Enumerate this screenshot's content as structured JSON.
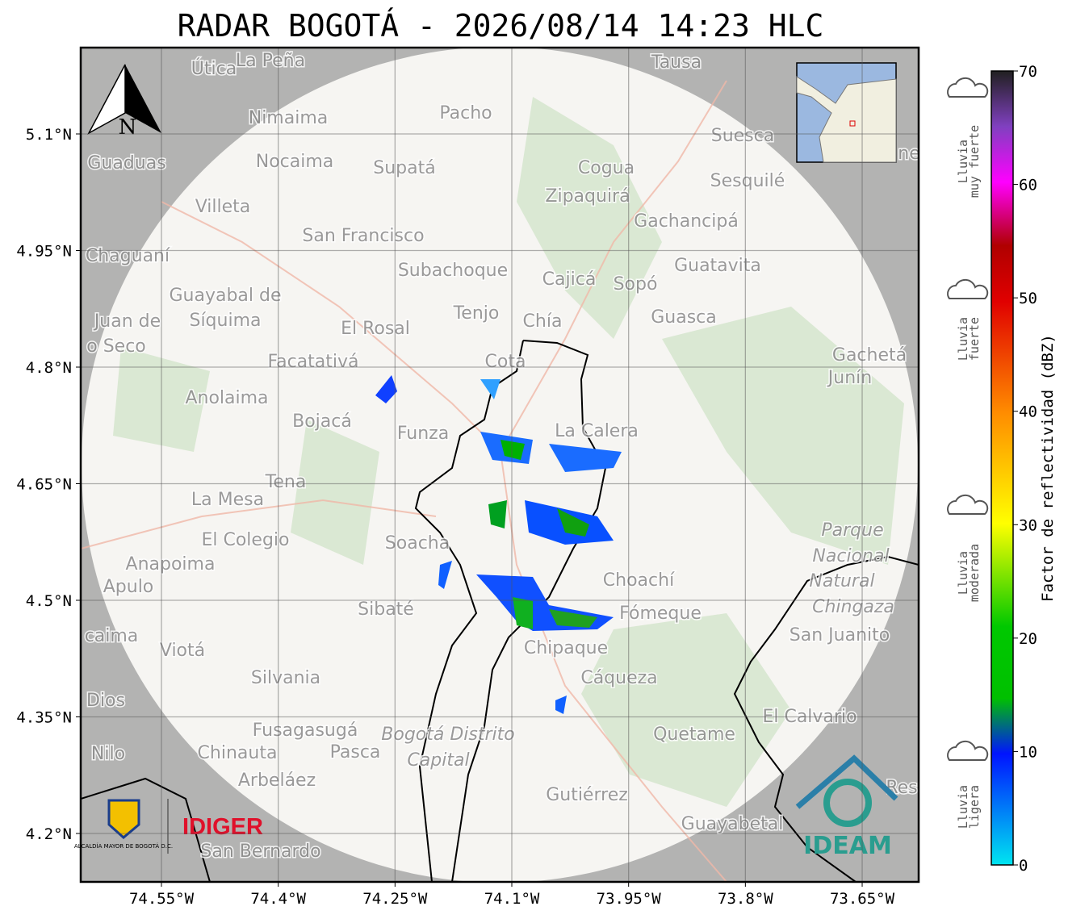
{
  "header": {
    "title": "RADAR BOGOTÁ - 2026/08/14 14:23 HLC"
  },
  "map": {
    "xticks": [
      {
        "value": -74.55,
        "label": "74.55°W"
      },
      {
        "value": -74.4,
        "label": "74.4°W"
      },
      {
        "value": -74.25,
        "label": "74.25°W"
      },
      {
        "value": -74.1,
        "label": "74.1°W"
      },
      {
        "value": -73.95,
        "label": "73.95°W"
      },
      {
        "value": -73.8,
        "label": "73.8°W"
      },
      {
        "value": -73.65,
        "label": "73.65°W"
      }
    ],
    "yticks": [
      {
        "value": 5.1,
        "label": "5.1°N"
      },
      {
        "value": 4.95,
        "label": "4.95°N"
      },
      {
        "value": 4.8,
        "label": "4.8°N"
      },
      {
        "value": 4.65,
        "label": "4.65°N"
      },
      {
        "value": 4.5,
        "label": "4.5°N"
      },
      {
        "value": 4.35,
        "label": "4.35°N"
      },
      {
        "value": 4.2,
        "label": "4.2°N"
      }
    ],
    "north": "N",
    "places": [
      "Útica",
      "La Peña",
      "Tausa",
      "Pacho",
      "Nimaima",
      "Guaduas",
      "Nocaima",
      "Supatá",
      "Cogua",
      "Suesca",
      "Sesquilé",
      "Zipaquirá",
      "Villeta",
      "Gachancipá",
      "San Francisco",
      "Chaguaní",
      "Guatavita",
      "Subachoque",
      "Cajicá",
      "Sopó",
      "Guayabal de",
      "Síquima",
      "Juan de",
      "Tenjo",
      "Chía",
      "Guasca",
      "El Rosal",
      "o Seco",
      "Gachetá",
      "Facatativá",
      "Cota",
      "Junín",
      "Anolaima",
      "Bojacá",
      "Funza",
      "La Calera",
      "Tena",
      "La Mesa",
      "El Colegio",
      "Parque",
      "Soacha",
      "Nacional",
      "Anapoima",
      "Apulo",
      "Natural",
      "Choachí",
      "Chingaza",
      "Sibaté",
      "Fómeque",
      "caima",
      "San Juanito",
      "Viotá",
      "Chipaque",
      "Silvania",
      "Cáqueza",
      "Dios",
      "El Calvario",
      "Fusagasugá",
      "Bogotá Distrito",
      "Quetame",
      "Nilo",
      "Chinauta",
      "Pasca",
      "Capital",
      "Arbeláez",
      "Res",
      "Gutiérrez",
      "Guayabetal",
      "San Bernardo",
      "ne"
    ],
    "logos": {
      "alcaldia": "ALCALDÍA MAYOR DE BOGOTÁ D.C.",
      "idiger": "IDIGER",
      "ideam": "IDEAM"
    }
  },
  "colorbar": {
    "label": "Factor de reflectividad (dBZ)",
    "lim": [
      0,
      70
    ],
    "ticks": [
      0,
      10,
      20,
      30,
      40,
      50,
      60,
      70
    ],
    "categories": [
      [
        "Lluvia",
        "ligera"
      ],
      [
        "Lluvia",
        "moderada"
      ],
      [
        "Lluvia",
        "fuerte"
      ],
      [
        "Lluvia",
        "muy fuerte"
      ]
    ]
  }
}
